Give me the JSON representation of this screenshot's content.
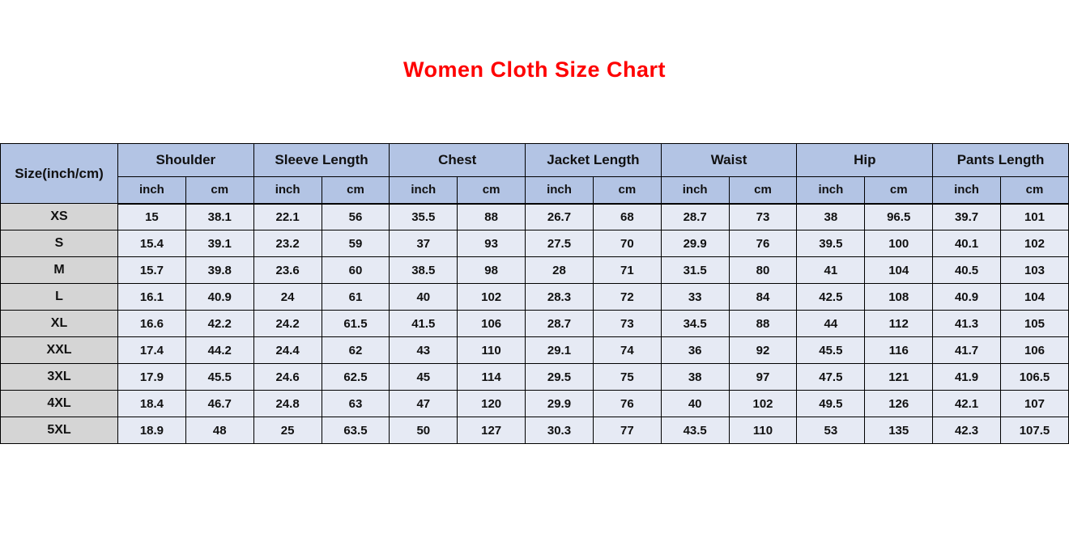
{
  "title": {
    "text": "Women Cloth Size Chart"
  },
  "colors": {
    "title": "#fe0000",
    "header_bg": "#b3c4e4",
    "row_label_bg": "#d5d5d5",
    "cell_bg": "#e6eaf4",
    "border": "#000000"
  },
  "chart_data": {
    "type": "table",
    "title": "Women Cloth Size Chart",
    "corner_header": "Size(inch/cm)",
    "measurement_groups": [
      "Shoulder",
      "Sleeve Length",
      "Chest",
      "Jacket Length",
      "Waist",
      "Hip",
      "Pants Length"
    ],
    "unit_subheaders": [
      "inch",
      "cm"
    ],
    "rows": [
      {
        "size": "XS",
        "values": [
          "15",
          "38.1",
          "22.1",
          "56",
          "35.5",
          "88",
          "26.7",
          "68",
          "28.7",
          "73",
          "38",
          "96.5",
          "39.7",
          "101"
        ]
      },
      {
        "size": "S",
        "values": [
          "15.4",
          "39.1",
          "23.2",
          "59",
          "37",
          "93",
          "27.5",
          "70",
          "29.9",
          "76",
          "39.5",
          "100",
          "40.1",
          "102"
        ]
      },
      {
        "size": "M",
        "values": [
          "15.7",
          "39.8",
          "23.6",
          "60",
          "38.5",
          "98",
          "28",
          "71",
          "31.5",
          "80",
          "41",
          "104",
          "40.5",
          "103"
        ]
      },
      {
        "size": "L",
        "values": [
          "16.1",
          "40.9",
          "24",
          "61",
          "40",
          "102",
          "28.3",
          "72",
          "33",
          "84",
          "42.5",
          "108",
          "40.9",
          "104"
        ]
      },
      {
        "size": "XL",
        "values": [
          "16.6",
          "42.2",
          "24.2",
          "61.5",
          "41.5",
          "106",
          "28.7",
          "73",
          "34.5",
          "88",
          "44",
          "112",
          "41.3",
          "105"
        ]
      },
      {
        "size": "XXL",
        "values": [
          "17.4",
          "44.2",
          "24.4",
          "62",
          "43",
          "110",
          "29.1",
          "74",
          "36",
          "92",
          "45.5",
          "116",
          "41.7",
          "106"
        ]
      },
      {
        "size": "3XL",
        "values": [
          "17.9",
          "45.5",
          "24.6",
          "62.5",
          "45",
          "114",
          "29.5",
          "75",
          "38",
          "97",
          "47.5",
          "121",
          "41.9",
          "106.5"
        ]
      },
      {
        "size": "4XL",
        "values": [
          "18.4",
          "46.7",
          "24.8",
          "63",
          "47",
          "120",
          "29.9",
          "76",
          "40",
          "102",
          "49.5",
          "126",
          "42.1",
          "107"
        ]
      },
      {
        "size": "5XL",
        "values": [
          "18.9",
          "48",
          "25",
          "63.5",
          "50",
          "127",
          "30.3",
          "77",
          "43.5",
          "110",
          "53",
          "135",
          "42.3",
          "107.5"
        ]
      }
    ]
  }
}
